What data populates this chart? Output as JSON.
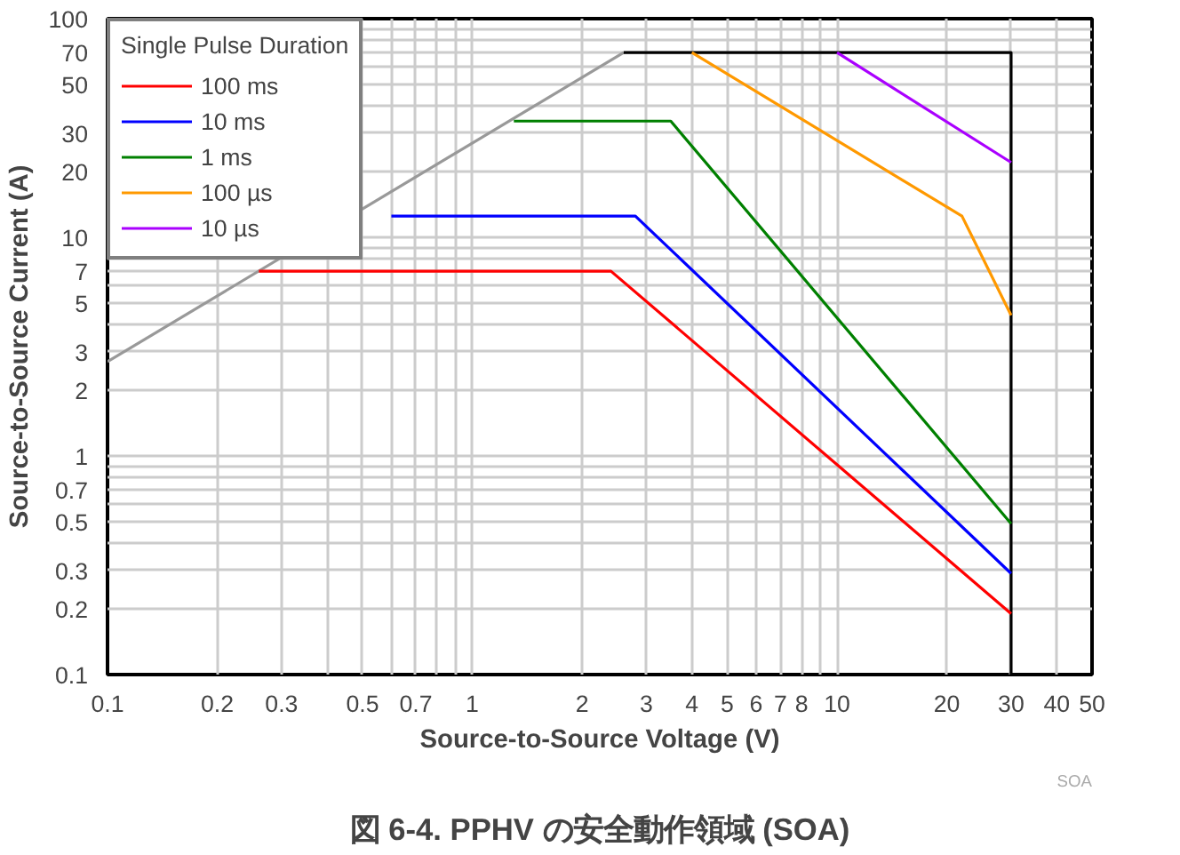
{
  "chart_data": {
    "type": "line",
    "title": "図 6-4. PPHV の安全動作領域 (SOA)",
    "xlabel": "Source-to-Source Voltage (V)",
    "ylabel": "Source-to-Source Current (A)",
    "legend_title": "Single Pulse Duration",
    "log": "xy",
    "grid": true,
    "legend": "top left",
    "line_style": "solid",
    "marker": "none",
    "xlim": [
      0.1,
      50
    ],
    "ylim": [
      0.1,
      100
    ],
    "xticks": [
      0.1,
      0.2,
      0.3,
      {
        "value": 0.4,
        "label": null
      },
      0.5,
      {
        "value": 0.6,
        "label": null
      },
      0.7,
      {
        "value": 0.8,
        "label": null
      },
      {
        "value": 0.9,
        "label": null
      },
      1,
      2,
      3,
      4,
      5,
      6,
      7,
      8,
      {
        "value": 9,
        "label": null
      },
      10,
      20,
      30,
      40,
      50
    ],
    "yticks": [
      0.1,
      0.2,
      0.3,
      {
        "value": 0.4,
        "label": null
      },
      0.5,
      {
        "value": 0.6,
        "label": null
      },
      0.7,
      {
        "value": 0.8,
        "label": null
      },
      {
        "value": 0.9,
        "label": null
      },
      1,
      2,
      3,
      {
        "value": 4,
        "label": null
      },
      5,
      {
        "value": 6,
        "label": null
      },
      7,
      {
        "value": 8,
        "label": null
      },
      {
        "value": 9,
        "label": null
      },
      10,
      20,
      30,
      {
        "value": 40,
        "label": null
      },
      50,
      {
        "value": 60,
        "label": null
      },
      70,
      {
        "value": 80,
        "label": null
      },
      {
        "value": 90,
        "label": null
      },
      100
    ],
    "annotations": [
      "SOA"
    ],
    "series": [
      {
        "color": "#999999",
        "x": [
          0.1,
          2.6
        ],
        "values": [
          2.7,
          70
        ]
      },
      {
        "color": "#000000",
        "x": [
          2.6,
          30,
          30
        ],
        "values": [
          70,
          70,
          0.1
        ]
      },
      {
        "name": "100 ms",
        "color": "#ff0000",
        "x": [
          0.26,
          2.4,
          30
        ],
        "values": [
          7,
          7,
          0.19
        ]
      },
      {
        "name": "10 ms",
        "color": "#0000ff",
        "x": [
          0.6,
          2.8,
          30
        ],
        "values": [
          12.5,
          12.5,
          0.29
        ]
      },
      {
        "name": "1 ms",
        "color": "#008000",
        "x": [
          1.3,
          3.5,
          30
        ],
        "values": [
          34,
          34,
          0.49
        ]
      },
      {
        "name": "100 µs",
        "color": "#ff9900",
        "x": [
          4.0,
          22,
          30
        ],
        "values": [
          70,
          12.5,
          4.4
        ]
      },
      {
        "name": "10 µs",
        "color": "#aa00ff",
        "x": [
          10,
          30
        ],
        "values": [
          70,
          22
        ]
      }
    ]
  }
}
